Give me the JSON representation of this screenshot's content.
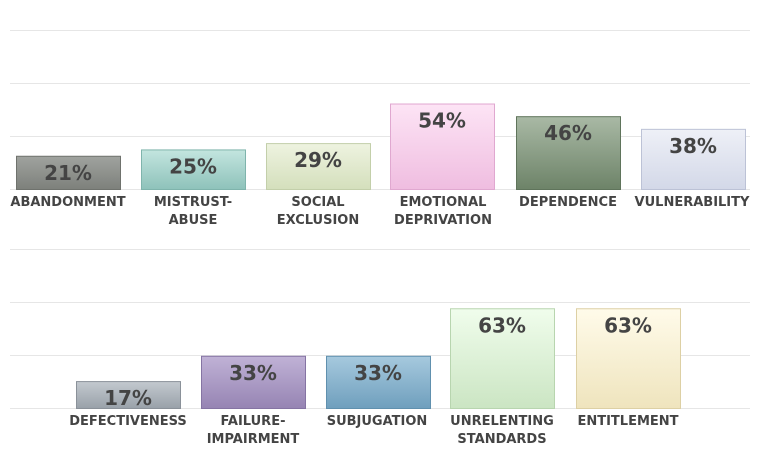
{
  "chart_data": [
    {
      "type": "bar",
      "grid": true,
      "ylim": [
        0,
        100
      ],
      "categories": [
        "ABANDONMENT",
        "MISTRUST-ABUSE",
        "SOCIAL EXCLUSION",
        "EMOTIONAL DEPRIVATION",
        "DEPENDENCE",
        "VULNERABILITY"
      ],
      "category_lines": [
        [
          "ABANDONMENT"
        ],
        [
          "MISTRUST-",
          "ABUSE"
        ],
        [
          "SOCIAL",
          "EXCLUSION"
        ],
        [
          "EMOTIONAL",
          "DEPRIVATION"
        ],
        [
          "DEPENDENCE"
        ],
        [
          "VULNERABILITY"
        ]
      ],
      "values": [
        21,
        25,
        29,
        54,
        46,
        38
      ],
      "value_labels": [
        "21%",
        "25%",
        "29%",
        "54%",
        "46%",
        "38%"
      ],
      "colors": [
        {
          "top": "#a0a39f",
          "bottom": "#7d807b",
          "border": "#6f726d"
        },
        {
          "top": "#c3e5df",
          "bottom": "#8ec2ba",
          "border": "#7fb4ac"
        },
        {
          "top": "#eef3e0",
          "bottom": "#d4dfbc",
          "border": "#c3cfaa"
        },
        {
          "top": "#fde4f5",
          "bottom": "#efbde0",
          "border": "#e0a8d0"
        },
        {
          "top": "#a9b9a5",
          "bottom": "#6d8368",
          "border": "#5f745b"
        },
        {
          "top": "#eef0f7",
          "bottom": "#d3d8e8",
          "border": "#bcc2d6"
        }
      ]
    },
    {
      "type": "bar",
      "grid": true,
      "ylim": [
        0,
        100
      ],
      "categories": [
        "DEFECTIVENESS",
        "FAILURE-IMPAIRMENT",
        "SUBJUGATION",
        "UNRELENTING STANDARDS",
        "ENTITLEMENT"
      ],
      "category_lines": [
        [
          "DEFECTIVENESS"
        ],
        [
          "FAILURE-",
          "IMPAIRMENT"
        ],
        [
          "SUBJUGATION"
        ],
        [
          "UNRELENTING",
          "STANDARDS"
        ],
        [
          "ENTITLEMENT"
        ]
      ],
      "values": [
        17,
        33,
        33,
        63,
        63
      ],
      "value_labels": [
        "17%",
        "33%",
        "33%",
        "63%",
        "63%"
      ],
      "colors": [
        {
          "top": "#c3c9cf",
          "bottom": "#99a1a9",
          "border": "#8a9199"
        },
        {
          "top": "#c0b2d6",
          "bottom": "#9684b3",
          "border": "#8574a3"
        },
        {
          "top": "#a6c9de",
          "bottom": "#6f9fbd",
          "border": "#6090ae"
        },
        {
          "top": "#f0fdec",
          "bottom": "#cbe5c3",
          "border": "#b8d5af"
        },
        {
          "top": "#fffbea",
          "bottom": "#efe4bd",
          "border": "#ddd0a4"
        }
      ]
    }
  ]
}
